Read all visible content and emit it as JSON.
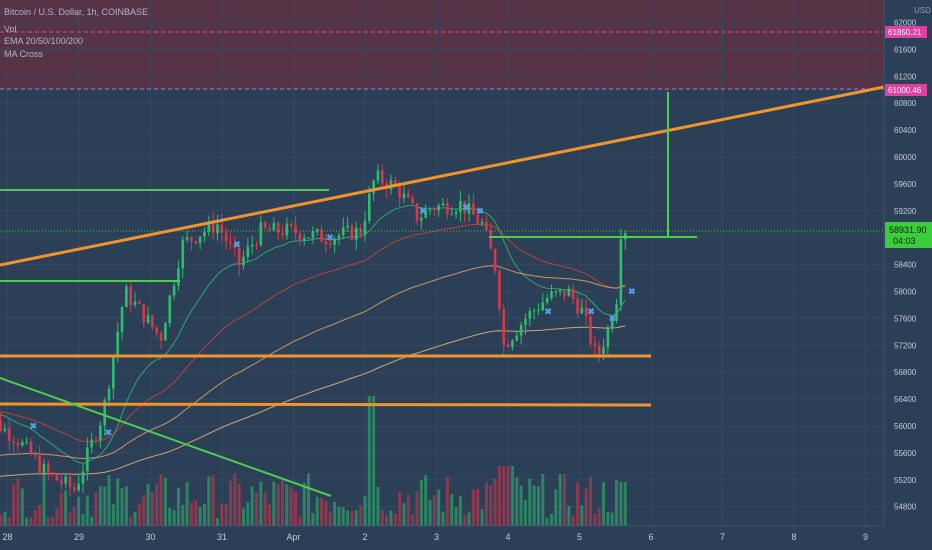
{
  "header": {
    "symbol_line": "Bitcoin / U.S. Dollar, 1h, COINBASE",
    "indicators": [
      "Vol",
      "EMA 20/50/100/200",
      "MA Cross"
    ]
  },
  "axis": {
    "currency": "USD",
    "price_ticks": [
      54800,
      55200,
      55600,
      56000,
      56400,
      56800,
      57200,
      57600,
      58000,
      58400,
      58800,
      59200,
      59600,
      60000,
      60400,
      60800,
      61200,
      61600,
      62000
    ],
    "time_ticks": [
      "28",
      "29",
      "30",
      "31",
      "Apr",
      "2",
      "3",
      "4",
      "5",
      "6",
      "7",
      "8",
      "9"
    ]
  },
  "price_labels": {
    "last_price": "58931.90",
    "countdown": "04:03",
    "upper_level": "61850.21",
    "mid_level": "61000.46"
  },
  "colors": {
    "background": "#2b3f57",
    "zone": "#5a3346",
    "grid": "#34485f",
    "candle_up": "#2ebd6e",
    "candle_down": "#d9374a",
    "trendline": "#f0942e",
    "green_line": "#4ccd4c",
    "ema_20": "#2fb36f",
    "ema_50": "#c8423c",
    "ema_100": "#e0a060",
    "ema_200": "#e8b074",
    "marker": "#4d9fe8",
    "label_pink": "#e040a0",
    "label_green": "#3ccd3c"
  },
  "chart_data": {
    "type": "candlestick",
    "title": "Bitcoin / U.S. Dollar, 1h, COINBASE",
    "ylabel": "USD",
    "ylim": [
      54400,
      62500
    ],
    "grid": true,
    "horizontal_levels": [
      {
        "label": "61850.21",
        "value": 61850.21
      },
      {
        "label": "61000.46",
        "value": 61000.46
      },
      {
        "label": "current",
        "value": 58931.9
      }
    ],
    "price_path": [
      {
        "day": 27.6,
        "price": 56300
      },
      {
        "day": 28.2,
        "price": 55800
      },
      {
        "day": 28.6,
        "price": 55300
      },
      {
        "day": 29.0,
        "price": 55050
      },
      {
        "day": 29.4,
        "price": 56200
      },
      {
        "day": 29.7,
        "price": 58000
      },
      {
        "day": 30.0,
        "price": 57600
      },
      {
        "day": 30.2,
        "price": 57300
      },
      {
        "day": 30.5,
        "price": 58700
      },
      {
        "day": 30.8,
        "price": 58900
      },
      {
        "day": 31.0,
        "price": 59000
      },
      {
        "day": 31.3,
        "price": 58400
      },
      {
        "day": 31.6,
        "price": 58900
      },
      {
        "day": 32.0,
        "price": 58900
      },
      {
        "day": 32.5,
        "price": 58800
      },
      {
        "day": 33.0,
        "price": 58900
      },
      {
        "day": 33.2,
        "price": 59700
      },
      {
        "day": 33.5,
        "price": 59550
      },
      {
        "day": 33.8,
        "price": 59100
      },
      {
        "day": 34.0,
        "price": 59250
      },
      {
        "day": 34.4,
        "price": 59300
      },
      {
        "day": 34.7,
        "price": 59000
      },
      {
        "day": 34.9,
        "price": 58300
      },
      {
        "day": 35.0,
        "price": 57200
      },
      {
        "day": 35.3,
        "price": 57600
      },
      {
        "day": 35.6,
        "price": 57900
      },
      {
        "day": 35.9,
        "price": 58000
      },
      {
        "day": 36.1,
        "price": 57700
      },
      {
        "day": 36.3,
        "price": 57000
      },
      {
        "day": 36.45,
        "price": 57400
      },
      {
        "day": 36.6,
        "price": 58000
      },
      {
        "day": 36.65,
        "price": 59150
      },
      {
        "day": 36.7,
        "price": 58932
      }
    ],
    "volume_bars": 150,
    "volume_spike_day": 33.1
  }
}
